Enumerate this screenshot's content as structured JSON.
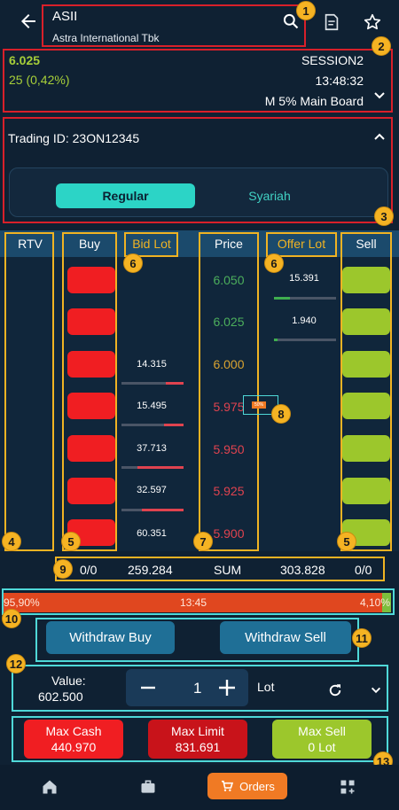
{
  "header": {
    "symbol": "ASII",
    "company": "Astra International Tbk"
  },
  "quote": {
    "last_price": "6.025",
    "change": "25 (0,42%)",
    "session": "SESSION2",
    "time": "13:48:32",
    "board": "M 5% Main Board"
  },
  "trading": {
    "id_label": "Trading ID:",
    "id_value": "23ON12345",
    "tabs": [
      "Regular",
      "Syariah"
    ],
    "active_tab": "Regular"
  },
  "orderbook": {
    "headers": {
      "rtv": "RTV",
      "buy": "Buy",
      "bid_lot": "Bid Lot",
      "price": "Price",
      "offer_lot": "Offer Lot",
      "sell": "Sell"
    },
    "prices": [
      "6.050",
      "6.025",
      "6.000",
      "5.975",
      "5.950",
      "5.925",
      "5.900"
    ],
    "price_colors": [
      "#4cae5c",
      "#4cae5c",
      "#d9a330",
      "#e0434f",
      "#e0434f",
      "#e0434f",
      "#e0434f"
    ],
    "bid_lots": [
      "",
      "",
      "14.315",
      "15.495",
      "37.713",
      "32.597",
      "60.351"
    ],
    "offer_lots": [
      "15.391",
      "1.940",
      "",
      "",
      "",
      "",
      ""
    ],
    "marker": "50%",
    "sum": {
      "left": "0/0",
      "bid_total": "259.284",
      "label": "SUM",
      "offer_total": "303.828",
      "right": "0/0"
    }
  },
  "progress": {
    "left_pct": "95,90%",
    "time": "13:45",
    "right_pct": "4,10%"
  },
  "actions": {
    "withdraw_buy": "Withdraw Buy",
    "withdraw_sell": "Withdraw Sell"
  },
  "order": {
    "value_label": "Value:",
    "value": "602.500",
    "quantity": "1",
    "unit": "Lot"
  },
  "limits": {
    "max_cash_label": "Max Cash",
    "max_cash_value": "440.970",
    "max_limit_label": "Max Limit",
    "max_limit_value": "831.691",
    "max_sell_label": "Max Sell",
    "max_sell_value": "0 Lot"
  },
  "nav": {
    "orders": "Orders"
  },
  "badges": [
    "1",
    "2",
    "3",
    "4",
    "5",
    "5",
    "6",
    "6",
    "7",
    "8",
    "9",
    "10",
    "11",
    "12",
    "13"
  ]
}
